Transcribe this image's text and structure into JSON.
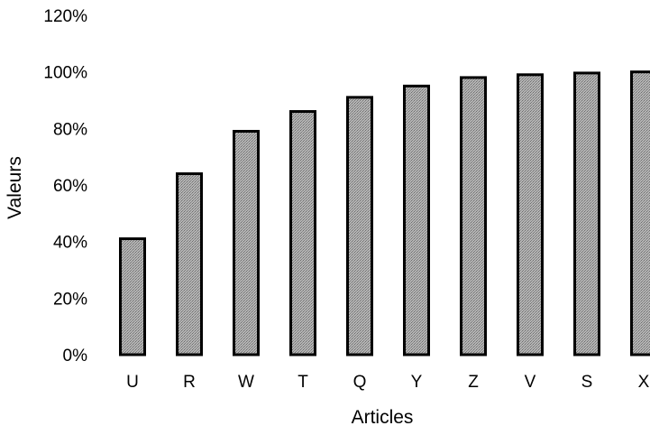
{
  "chart_data": {
    "type": "bar",
    "title": "",
    "xlabel": "Articles",
    "ylabel": "Valeurs",
    "categories": [
      "U",
      "R",
      "W",
      "T",
      "Q",
      "Y",
      "Z",
      "V",
      "S",
      "X"
    ],
    "values": [
      41,
      64,
      79,
      86,
      91,
      95,
      98,
      99,
      99.6,
      100
    ],
    "ylim": [
      0,
      120
    ],
    "yticks": [
      "0%",
      "20%",
      "40%",
      "60%",
      "80%",
      "100%",
      "120%"
    ],
    "grid": false,
    "legend": "none",
    "bar_fill": "#a6a6a6",
    "bar_edge": "#000000"
  }
}
